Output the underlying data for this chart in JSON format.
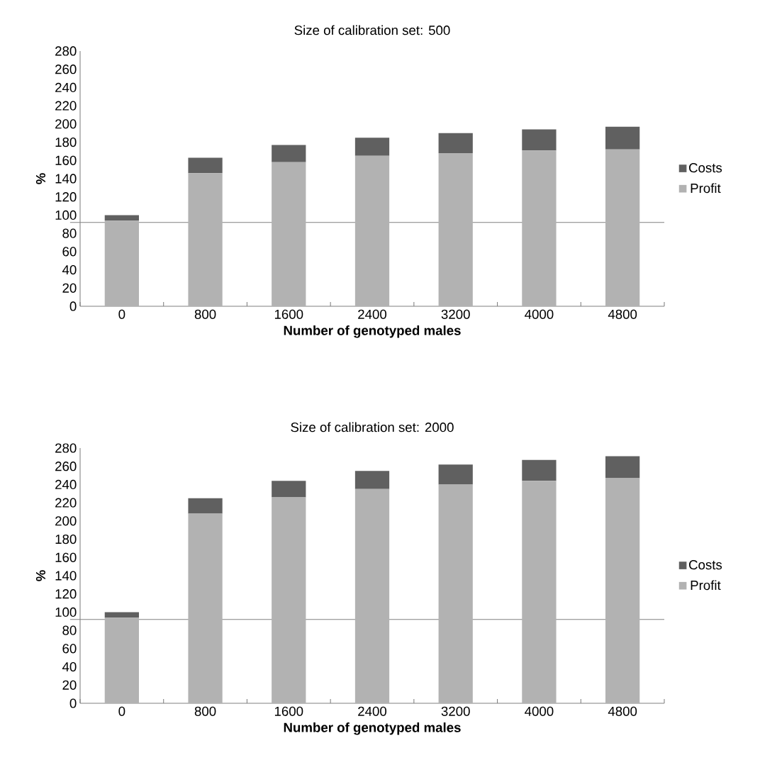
{
  "chart_data": [
    {
      "type": "bar",
      "title": "Size of calibration set: 500",
      "xlabel": "Number of genotyped males",
      "ylabel": "%",
      "categories": [
        "0",
        "800",
        "1600",
        "2400",
        "3200",
        "4000",
        "4800"
      ],
      "stacked": true,
      "series": [
        {
          "name": "Profit",
          "color": "#b2b2b2",
          "values": [
            94,
            146,
            158,
            165,
            168,
            171,
            172
          ]
        },
        {
          "name": "Costs",
          "color": "#606060",
          "values": [
            6,
            17,
            19,
            20,
            22,
            23,
            25
          ]
        }
      ],
      "ylim": [
        0,
        280
      ],
      "yticks": [
        0,
        20,
        40,
        60,
        80,
        100,
        120,
        140,
        160,
        180,
        200,
        220,
        240,
        260,
        280
      ],
      "legend": "right",
      "ref_lines": [
        {
          "axis": "y",
          "value": 92,
          "color": "#808080"
        }
      ]
    },
    {
      "type": "bar",
      "title": "Size of calibration set: 2000",
      "xlabel": "Number of genotyped males",
      "ylabel": "%",
      "categories": [
        "0",
        "800",
        "1600",
        "2400",
        "3200",
        "4000",
        "4800"
      ],
      "stacked": true,
      "series": [
        {
          "name": "Profit",
          "color": "#b2b2b2",
          "values": [
            94,
            208,
            226,
            235,
            240,
            244,
            247
          ]
        },
        {
          "name": "Costs",
          "color": "#606060",
          "values": [
            6,
            17,
            18,
            20,
            22,
            23,
            24
          ]
        }
      ],
      "ylim": [
        0,
        280
      ],
      "yticks": [
        0,
        20,
        40,
        60,
        80,
        100,
        120,
        140,
        160,
        180,
        200,
        220,
        240,
        260,
        280
      ],
      "legend": "right",
      "ref_lines": [
        {
          "axis": "y",
          "value": 92,
          "color": "#808080"
        }
      ]
    }
  ]
}
